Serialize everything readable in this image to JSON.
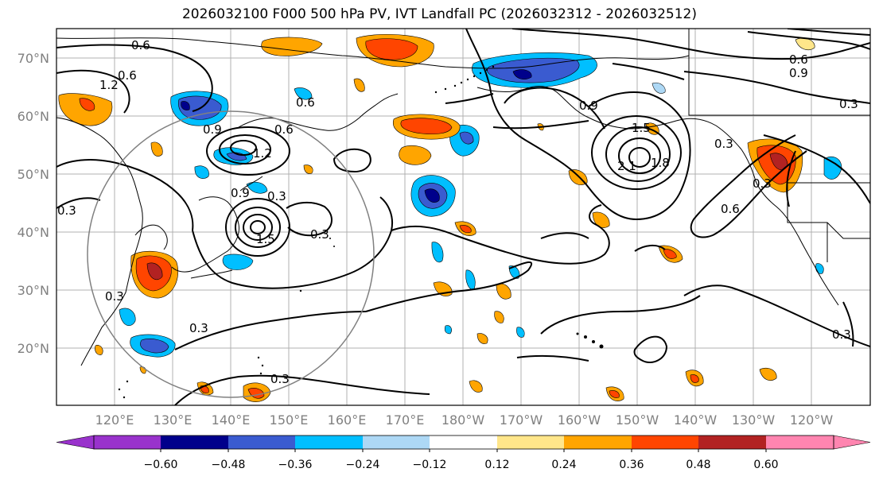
{
  "title": "2026032100 F000 500 hPa PV, IVT Landfall PC (2026032312 - 2026032512)",
  "latitude_labels": [
    "70°N",
    "60°N",
    "50°N",
    "40°N",
    "30°N",
    "20°N"
  ],
  "longitude_labels": [
    "120°E",
    "130°E",
    "140°E",
    "150°E",
    "160°E",
    "170°E",
    "180°W",
    "170°W",
    "160°W",
    "150°W",
    "140°W",
    "130°W",
    "120°W"
  ],
  "colorbar": {
    "tick_labels": [
      "−0.60",
      "−0.48",
      "−0.36",
      "−0.24",
      "−0.12",
      "0.12",
      "0.24",
      "0.36",
      "0.48",
      "0.60"
    ],
    "colors": [
      "#9932cc",
      "#00008b",
      "#3a5bd0",
      "#00bfff",
      "#add8f5",
      "#ffffff",
      "#ffe68a",
      "#ffa500",
      "#ff4500",
      "#b22222",
      "#ff85b0"
    ]
  },
  "contour_labels": [
    "0.6",
    "1.2",
    "0.6",
    "0.9",
    "0.6",
    "0.6",
    "1.2",
    "0.9",
    "0.3",
    "0.3",
    "1.5",
    "0.3",
    "0.3",
    "0.3",
    "0.9",
    "1.5",
    "2.1",
    "1.8",
    "0.9",
    "0.6",
    "0.6",
    "0.3",
    "0.3",
    "0.3",
    "0.3",
    "0.3"
  ]
}
